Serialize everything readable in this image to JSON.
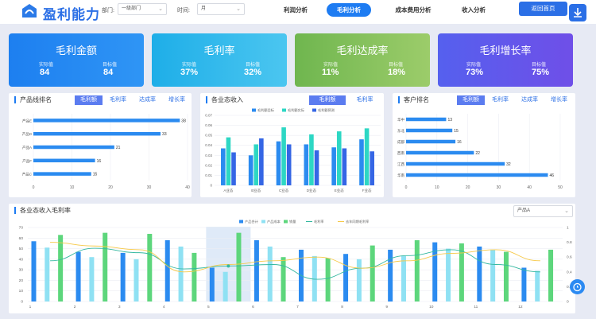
{
  "header": {
    "title": "盈利能力",
    "dept_label": "部门:",
    "dept_value": "一级部门",
    "time_label": "时间:",
    "time_value": "月",
    "back_label": "返回首页"
  },
  "nav": {
    "tabs": [
      {
        "label": "利润分析"
      },
      {
        "label": "毛利分析"
      },
      {
        "label": "成本费用分析"
      },
      {
        "label": "收入分析"
      }
    ]
  },
  "kpis": [
    {
      "title": "毛利金额",
      "actual_label": "实际值",
      "actual": "84",
      "target_label": "目标值",
      "target": "84",
      "color": "#1f86f0"
    },
    {
      "title": "毛利率",
      "actual_label": "实际值",
      "actual": "37%",
      "target_label": "目标值",
      "target": "32%",
      "color": "#24b3ea"
    },
    {
      "title": "毛利达成率",
      "actual_label": "实际值",
      "actual": "11%",
      "target_label": "目标值",
      "target": "18%",
      "color": "#79bb56"
    },
    {
      "title": "毛利增长率",
      "actual_label": "实际值",
      "actual": "73%",
      "target_label": "目标值",
      "target": "75%",
      "color": "#5a5ff0"
    }
  ],
  "product_panel": {
    "title": "产品线排名",
    "tabs": [
      "毛利额",
      "毛利率",
      "达成率",
      "增长率"
    ]
  },
  "business_panel": {
    "title": "各业态收入",
    "tabs": [
      "毛利额",
      "毛利率"
    ]
  },
  "customer_panel": {
    "title": "客户排名",
    "tabs": [
      "毛利额",
      "毛利率",
      "达成率",
      "增长率"
    ]
  },
  "trend_panel": {
    "title": "各业态收入毛利率",
    "select_value": "产品A"
  },
  "chart_data": [
    {
      "type": "bar",
      "orientation": "horizontal",
      "categories": [
        "产品E",
        "产品D",
        "产品A",
        "产品F",
        "产品C"
      ],
      "values": [
        38,
        33,
        21,
        16,
        15
      ],
      "xlim": [
        0,
        40
      ],
      "xticks": [
        "0",
        "10",
        "20",
        "30",
        "40"
      ]
    },
    {
      "type": "bar",
      "categories": [
        "A业态",
        "B业态",
        "C业态",
        "D业态",
        "E业态",
        "F业态"
      ],
      "series": [
        {
          "name": "毛利额目标",
          "color": "#2b8bf0",
          "values": [
            0.037,
            0.03,
            0.044,
            0.041,
            0.038,
            0.046
          ]
        },
        {
          "name": "毛利额实际",
          "color": "#2dd7c4",
          "values": [
            0.048,
            0.041,
            0.058,
            0.051,
            0.054,
            0.057
          ]
        },
        {
          "name": "毛利额预测",
          "color": "#3566e5",
          "values": [
            0.033,
            0.047,
            0.041,
            0.035,
            0.037,
            0.034
          ]
        }
      ],
      "ylim": [
        0,
        0.07
      ],
      "yticks": [
        "0",
        "0.01",
        "0.02",
        "0.03",
        "0.04",
        "0.05",
        "0.06",
        "0.07"
      ]
    },
    {
      "type": "bar",
      "orientation": "horizontal",
      "categories": [
        "华中",
        "东北",
        "成都",
        "西南",
        "江西",
        "华南"
      ],
      "values": [
        13,
        15,
        16,
        22,
        32,
        46
      ],
      "xlim": [
        0,
        50
      ],
      "xticks": [
        "0",
        "10",
        "20",
        "30",
        "40",
        "50"
      ]
    },
    {
      "type": "bar",
      "categories": [
        "1",
        "2",
        "3",
        "4",
        "5",
        "6",
        "7",
        "8",
        "9",
        "10",
        "11",
        "12"
      ],
      "series": [
        {
          "name": "产品合计",
          "color": "#2b8bf0",
          "values": [
            57,
            47,
            46,
            58,
            32,
            58,
            49,
            45,
            49,
            56,
            52,
            32
          ]
        },
        {
          "name": "产品成本",
          "color": "#8fe1f3",
          "values": [
            51,
            42,
            40,
            52,
            28,
            52,
            43,
            40,
            43,
            50,
            49,
            29
          ]
        },
        {
          "name": "销量",
          "color": "#5dd67c",
          "values": [
            63,
            65,
            64,
            46,
            65,
            42,
            41,
            53,
            58,
            55,
            47,
            49
          ]
        }
      ],
      "lines": [
        {
          "name": "毛利率",
          "color": "#34b8a0",
          "values": [
            0.55,
            0.72,
            0.66,
            0.44,
            0.48,
            0.5,
            0.3,
            0.45,
            0.62,
            0.7,
            0.5,
            0.4
          ]
        },
        {
          "name": "去年同期毛利率",
          "color": "#f7c948",
          "values": [
            0.8,
            0.75,
            0.7,
            0.4,
            0.5,
            0.55,
            0.6,
            0.45,
            0.55,
            0.65,
            0.7,
            0.55
          ]
        }
      ],
      "ylim": [
        0,
        70
      ],
      "y2lim": [
        0,
        1
      ],
      "yticks": [
        "0",
        "10",
        "20",
        "30",
        "40",
        "50",
        "60",
        "70"
      ],
      "y2ticks": [
        "0",
        "0.2",
        "0.4",
        "0.6",
        "0.8",
        "1"
      ],
      "highlight_category": "5"
    }
  ]
}
